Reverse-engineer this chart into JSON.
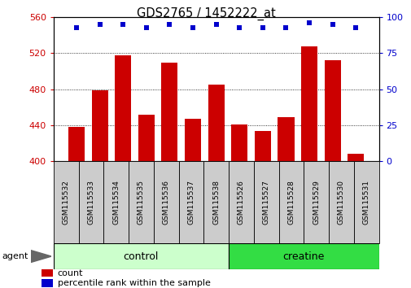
{
  "title": "GDS2765 / 1452222_at",
  "categories": [
    "GSM115532",
    "GSM115533",
    "GSM115534",
    "GSM115535",
    "GSM115536",
    "GSM115537",
    "GSM115538",
    "GSM115526",
    "GSM115527",
    "GSM115528",
    "GSM115529",
    "GSM115530",
    "GSM115531"
  ],
  "counts": [
    438,
    479,
    518,
    452,
    510,
    447,
    485,
    441,
    434,
    449,
    528,
    512,
    408
  ],
  "percentile_ranks": [
    93,
    95,
    95,
    93,
    95,
    93,
    95,
    93,
    93,
    93,
    96,
    95,
    93
  ],
  "ylim_left": [
    400,
    560
  ],
  "ylim_right": [
    0,
    100
  ],
  "yticks_left": [
    400,
    440,
    480,
    520,
    560
  ],
  "yticks_right": [
    0,
    25,
    50,
    75,
    100
  ],
  "bar_color": "#cc0000",
  "dot_color": "#0000cc",
  "grid_color": "#000000",
  "bg_color": "#ffffff",
  "group_labels": [
    "control",
    "creatine"
  ],
  "group_split": 7,
  "group_colors": [
    "#ccffcc",
    "#33dd44"
  ],
  "agent_label": "agent",
  "legend_count_label": "count",
  "legend_pct_label": "percentile rank within the sample",
  "left_axis_color": "#cc0000",
  "right_axis_color": "#0000cc",
  "tick_bg_color": "#cccccc",
  "n_control": 7,
  "n_creatine": 6
}
